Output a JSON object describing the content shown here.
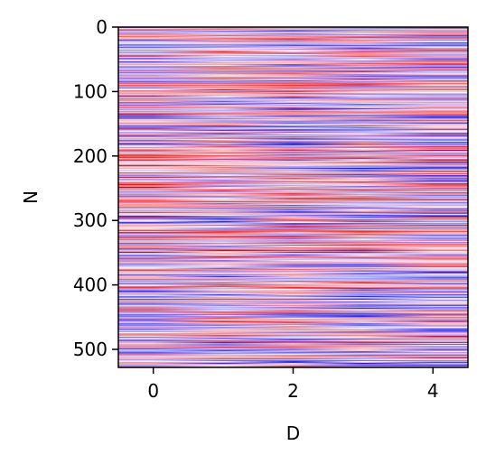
{
  "chart_data": {
    "type": "heatmap",
    "title": "",
    "xlabel": "D",
    "ylabel": "N",
    "xlim": [
      -0.5,
      4.5
    ],
    "ylim": [
      528,
      0
    ],
    "n_rows": 528,
    "n_cols": 5,
    "colormap": "bwr",
    "color_low": "#0000ff",
    "color_mid": "#ffffff",
    "color_high": "#ff0000",
    "x_ticks": [
      {
        "value": 0,
        "label": "0"
      },
      {
        "value": 2,
        "label": "2"
      },
      {
        "value": 4,
        "label": "4"
      }
    ],
    "y_ticks": [
      {
        "value": 0,
        "label": "0"
      },
      {
        "value": 100,
        "label": "100"
      },
      {
        "value": 200,
        "label": "200"
      },
      {
        "value": 300,
        "label": "300"
      },
      {
        "value": 400,
        "label": "400"
      },
      {
        "value": 500,
        "label": "500"
      }
    ]
  }
}
